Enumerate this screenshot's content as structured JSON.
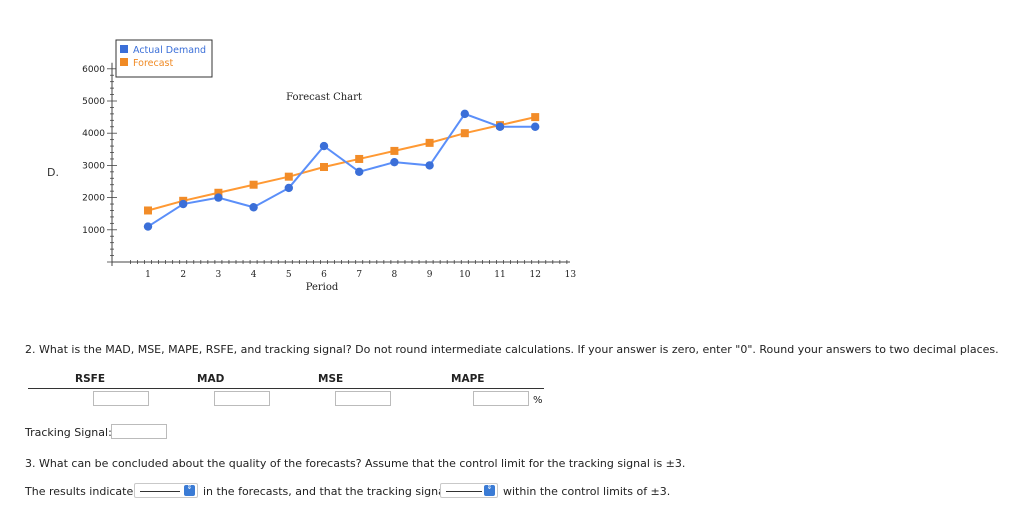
{
  "question_letter": "D.",
  "chart_data": {
    "type": "line",
    "title": "Forecast Chart",
    "xlabel": "Period",
    "ylabel": "",
    "x": [
      1,
      2,
      3,
      4,
      5,
      6,
      7,
      8,
      9,
      10,
      11,
      12
    ],
    "xlim": [
      0.5,
      13
    ],
    "ylim": [
      0,
      6000
    ],
    "x_ticks": [
      1,
      2,
      3,
      4,
      5,
      6,
      7,
      8,
      9,
      10,
      11,
      12,
      13
    ],
    "y_ticks": [
      1000,
      2000,
      3000,
      4000,
      5000,
      6000
    ],
    "legend_position": "top-left",
    "series": [
      {
        "name": "Actual Demand",
        "color": "#5b8ff9",
        "marker": "circle",
        "values": [
          1100,
          1800,
          2000,
          1700,
          2300,
          3600,
          2800,
          3100,
          3000,
          4600,
          4200,
          4200
        ]
      },
      {
        "name": "Forecast",
        "color": "#ff9933",
        "marker": "square",
        "values": [
          1600,
          1900,
          2150,
          2400,
          2650,
          2950,
          3200,
          3450,
          3700,
          4000,
          4250,
          4500
        ]
      }
    ]
  },
  "q2": {
    "text": "2. What is the MAD, MSE, MAPE, RSFE, and tracking signal? Do not round intermediate calculations. If your answer is zero, enter \"0\". Round your answers to two decimal places.",
    "headers": {
      "rsfe": "RSFE",
      "mad": "MAD",
      "mse": "MSE",
      "mape": "MAPE"
    },
    "percent_symbol": "%",
    "tracking_label": "Tracking Signal:"
  },
  "q3": {
    "text": "3. What can be concluded about the quality of the forecasts? Assume that the control limit for the tracking signal is ±3.",
    "prefix": "The results indicate",
    "middle": "in the forecasts, and that the tracking signal",
    "suffix": "within the control limits of ±3.",
    "caret_glyph": "⇕"
  }
}
